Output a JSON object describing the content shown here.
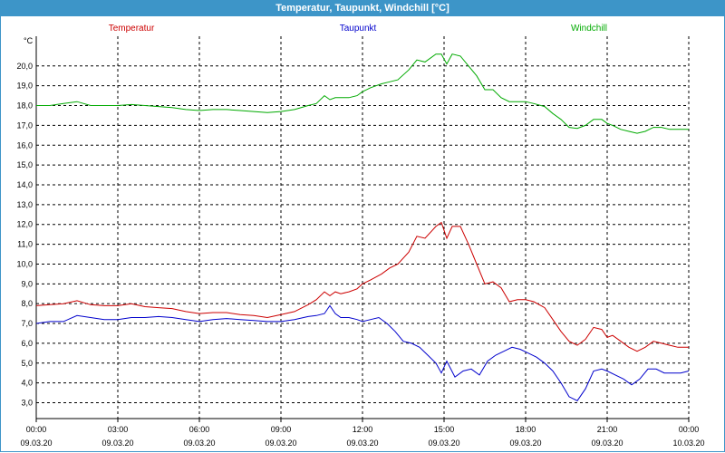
{
  "window": {
    "title": "Temperatur, Taupunkt, Windchill [°C]"
  },
  "chart_data": {
    "type": "line",
    "title": "Temperatur, Taupunkt, Windchill [°C]",
    "ylabel": "°C",
    "ylim": [
      2.2,
      21.5
    ],
    "xlim": [
      0,
      24
    ],
    "grid": true,
    "legend_position": "top",
    "y_ticks": [
      "3,0",
      "4,0",
      "5,0",
      "6,0",
      "7,0",
      "8,0",
      "9,0",
      "10,0",
      "11,0",
      "12,0",
      "13,0",
      "14,0",
      "15,0",
      "16,0",
      "17,0",
      "18,0",
      "19,0",
      "20,0"
    ],
    "x_ticks": [
      {
        "time": "00:00",
        "date": "09.03.20"
      },
      {
        "time": "03:00",
        "date": "09.03.20"
      },
      {
        "time": "06:00",
        "date": "09.03.20"
      },
      {
        "time": "09:00",
        "date": "09.03.20"
      },
      {
        "time": "12:00",
        "date": "09.03.20"
      },
      {
        "time": "15:00",
        "date": "09.03.20"
      },
      {
        "time": "18:00",
        "date": "09.03.20"
      },
      {
        "time": "21:00",
        "date": "09.03.20"
      },
      {
        "time": "00:00",
        "date": "10.03.20"
      }
    ],
    "x_unit": "hours since 09.03.20 00:00",
    "series": [
      {
        "name": "Temperatur",
        "color": "#cc0000",
        "x": [
          0,
          0.5,
          1,
          1.5,
          2,
          2.5,
          3,
          3.5,
          4,
          4.5,
          5,
          5.5,
          6,
          6.5,
          7,
          7.5,
          8,
          8.5,
          9,
          9.5,
          10,
          10.3,
          10.6,
          10.8,
          11,
          11.2,
          11.5,
          11.8,
          12,
          12.3,
          12.7,
          13,
          13.3,
          13.7,
          14,
          14.3,
          14.7,
          14.9,
          15.1,
          15.3,
          15.6,
          15.9,
          16.2,
          16.5,
          16.8,
          17.1,
          17.4,
          17.7,
          18,
          18.3,
          18.7,
          19,
          19.3,
          19.6,
          19.9,
          20.2,
          20.5,
          20.8,
          21,
          21.2,
          21.5,
          21.8,
          22.1,
          22.4,
          22.7,
          23,
          23.3,
          23.6,
          24
        ],
        "y": [
          7.9,
          7.95,
          8.0,
          8.15,
          7.95,
          7.9,
          7.9,
          8.0,
          7.85,
          7.8,
          7.75,
          7.6,
          7.5,
          7.55,
          7.55,
          7.45,
          7.4,
          7.3,
          7.45,
          7.6,
          7.95,
          8.2,
          8.6,
          8.4,
          8.6,
          8.5,
          8.6,
          8.75,
          9.0,
          9.2,
          9.5,
          9.8,
          10.0,
          10.6,
          11.4,
          11.3,
          11.9,
          12.1,
          11.3,
          11.9,
          11.9,
          11.0,
          10.0,
          9.0,
          9.1,
          8.8,
          8.1,
          8.2,
          8.2,
          8.1,
          7.8,
          7.2,
          6.6,
          6.1,
          5.9,
          6.2,
          6.8,
          6.7,
          6.3,
          6.4,
          6.1,
          5.8,
          5.6,
          5.8,
          6.1,
          6.0,
          5.9,
          5.8,
          5.8
        ]
      },
      {
        "name": "Taupunkt",
        "color": "#0000cc",
        "x": [
          0,
          0.5,
          1,
          1.5,
          2,
          2.5,
          3,
          3.5,
          4,
          4.5,
          5,
          5.5,
          6,
          6.5,
          7,
          7.5,
          8,
          8.5,
          9,
          9.5,
          10,
          10.3,
          10.6,
          10.8,
          11,
          11.2,
          11.5,
          11.8,
          12,
          12.3,
          12.6,
          12.9,
          13.2,
          13.5,
          13.8,
          14.1,
          14.4,
          14.7,
          14.9,
          15.1,
          15.4,
          15.7,
          16,
          16.3,
          16.6,
          16.9,
          17.2,
          17.5,
          17.8,
          18.1,
          18.4,
          18.7,
          19,
          19.3,
          19.6,
          19.9,
          20.2,
          20.5,
          20.8,
          21,
          21.3,
          21.6,
          21.9,
          22.2,
          22.5,
          22.8,
          23.1,
          23.4,
          23.7,
          24
        ],
        "y": [
          7.0,
          7.1,
          7.1,
          7.4,
          7.3,
          7.2,
          7.2,
          7.3,
          7.3,
          7.35,
          7.3,
          7.2,
          7.1,
          7.2,
          7.25,
          7.2,
          7.15,
          7.1,
          7.1,
          7.2,
          7.35,
          7.4,
          7.5,
          7.9,
          7.5,
          7.3,
          7.3,
          7.2,
          7.1,
          7.2,
          7.3,
          7.0,
          6.6,
          6.1,
          6.0,
          5.8,
          5.4,
          5.0,
          4.5,
          5.1,
          4.3,
          4.6,
          4.7,
          4.4,
          5.1,
          5.4,
          5.6,
          5.8,
          5.7,
          5.5,
          5.3,
          5.0,
          4.6,
          4.0,
          3.3,
          3.1,
          3.7,
          4.6,
          4.7,
          4.6,
          4.4,
          4.2,
          3.9,
          4.2,
          4.7,
          4.7,
          4.5,
          4.5,
          4.5,
          4.6
        ]
      },
      {
        "name": "Windchill",
        "color": "#00aa00",
        "x": [
          0,
          0.5,
          1,
          1.5,
          2,
          2.5,
          3,
          3.5,
          4,
          4.5,
          5,
          5.5,
          6,
          6.5,
          7,
          7.5,
          8,
          8.5,
          9,
          9.5,
          10,
          10.3,
          10.6,
          10.8,
          11,
          11.2,
          11.5,
          11.8,
          12,
          12.3,
          12.7,
          13,
          13.3,
          13.7,
          14,
          14.3,
          14.7,
          14.9,
          15.1,
          15.3,
          15.6,
          15.9,
          16.2,
          16.5,
          16.8,
          17.1,
          17.4,
          17.7,
          18,
          18.3,
          18.7,
          19,
          19.3,
          19.6,
          19.9,
          20.2,
          20.5,
          20.8,
          21,
          21.2,
          21.5,
          21.8,
          22.1,
          22.4,
          22.7,
          23,
          23.3,
          23.6,
          24
        ],
        "y": [
          18.0,
          18.0,
          18.1,
          18.2,
          18.0,
          18.0,
          18.0,
          18.05,
          18.0,
          17.95,
          17.9,
          17.8,
          17.75,
          17.8,
          17.8,
          17.75,
          17.7,
          17.65,
          17.7,
          17.8,
          18.0,
          18.1,
          18.5,
          18.3,
          18.4,
          18.4,
          18.4,
          18.5,
          18.7,
          18.9,
          19.1,
          19.2,
          19.3,
          19.8,
          20.3,
          20.2,
          20.6,
          20.6,
          20.1,
          20.6,
          20.5,
          20.0,
          19.5,
          18.8,
          18.8,
          18.4,
          18.2,
          18.2,
          18.2,
          18.1,
          17.95,
          17.6,
          17.3,
          16.9,
          16.85,
          17.0,
          17.3,
          17.3,
          17.1,
          17.0,
          16.8,
          16.7,
          16.6,
          16.7,
          16.9,
          16.9,
          16.8,
          16.8,
          16.8
        ]
      }
    ]
  }
}
